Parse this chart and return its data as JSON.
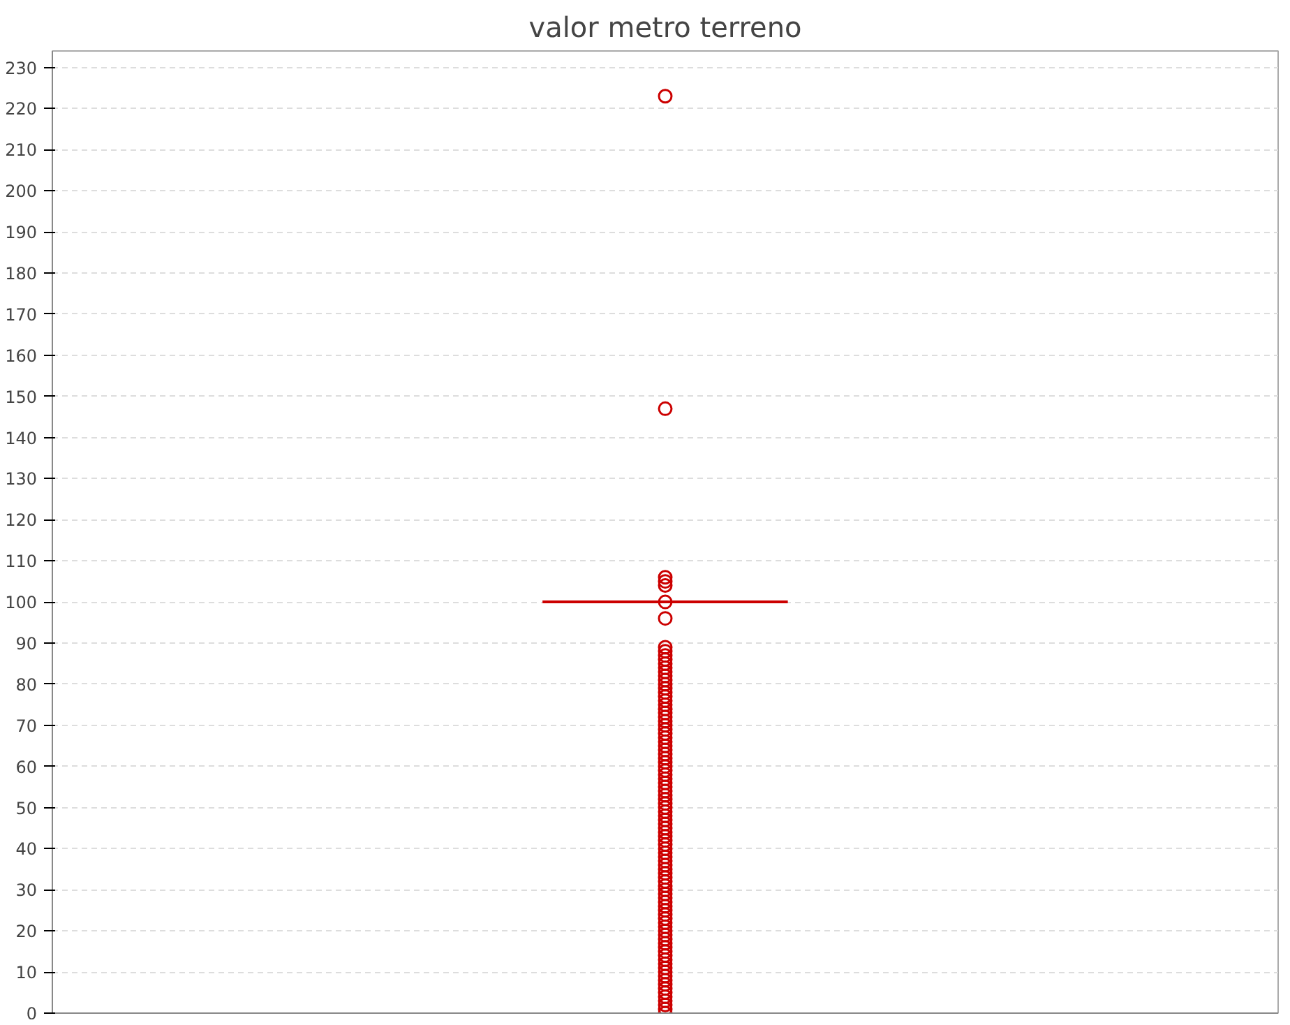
{
  "chart_data": {
    "type": "box",
    "title": "valor metro terreno",
    "categories": [
      null
    ],
    "boxes": [
      {
        "low": 100,
        "q1": 100,
        "median": 100,
        "q3": 100,
        "high": 100,
        "outliers": [
          0,
          1,
          2,
          3,
          4,
          5,
          6,
          7,
          8,
          9,
          10,
          11,
          12,
          13,
          14,
          15,
          16,
          17,
          18,
          19,
          20,
          21,
          22,
          23,
          24,
          25,
          26,
          27,
          28,
          29,
          30,
          31,
          32,
          33,
          34,
          35,
          36,
          37,
          38,
          39,
          40,
          41,
          42,
          43,
          44,
          45,
          46,
          47,
          48,
          49,
          50,
          51,
          52,
          53,
          54,
          55,
          56,
          57,
          58,
          59,
          60,
          61,
          62,
          63,
          64,
          65,
          66,
          67,
          68,
          69,
          70,
          71,
          72,
          73,
          74,
          75,
          76,
          77,
          78,
          79,
          80,
          81,
          82,
          83,
          84,
          85,
          86,
          87,
          88,
          89,
          96,
          100,
          104,
          105,
          106,
          147,
          223
        ]
      }
    ],
    "color": "#cc0000",
    "ylim": [
      0,
      234
    ],
    "yticks": [
      0,
      10,
      20,
      30,
      40,
      50,
      60,
      70,
      80,
      90,
      100,
      110,
      120,
      130,
      140,
      150,
      160,
      170,
      180,
      190,
      200,
      210,
      220,
      230
    ],
    "grid": "y",
    "marker": "circle"
  }
}
